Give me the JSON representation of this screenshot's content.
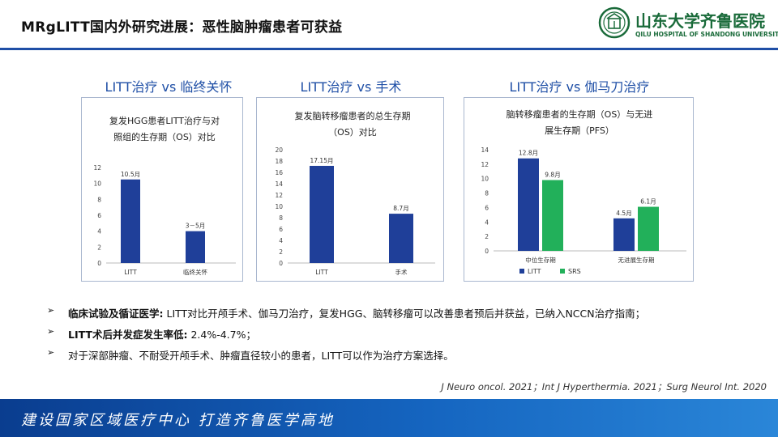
{
  "header": {
    "title": "MRgLITT国内外研究进展：恶性脑肿瘤患者可获益",
    "logo_text": "山东大学齐鲁医院",
    "logo_sub": "QILU HOSPITAL OF SHANDONG UNIVERSITY"
  },
  "columns": [
    {
      "heading": "LITT治疗 vs 临终关怀",
      "chart_title_line1": "复发HGG患者LITT治疗与对",
      "chart_title_line2": "照组的生存期（OS）对比"
    },
    {
      "heading": "LITT治疗 vs 手术",
      "chart_title_line1": "复发脑转移瘤患者的总生存期",
      "chart_title_line2": "（OS）对比"
    },
    {
      "heading": "LITT治疗 vs 伽马刀治疗",
      "chart_title_line1": "脑转移瘤患者的生存期（OS）与无进",
      "chart_title_line2": "展生存期（PFS）"
    }
  ],
  "chart_data": [
    {
      "type": "bar",
      "categories": [
        "LITT",
        "临终关怀"
      ],
      "values": [
        10.5,
        4
      ],
      "data_labels": [
        "10.5月",
        "3－5月"
      ],
      "ylim": [
        0,
        12
      ],
      "yticks": [
        0,
        2,
        4,
        6,
        8,
        10,
        12
      ],
      "color": "#1f3f99"
    },
    {
      "type": "bar",
      "categories": [
        "LITT",
        "手术"
      ],
      "values": [
        17.15,
        8.7
      ],
      "data_labels": [
        "17.15月",
        "8.7月"
      ],
      "ylim": [
        0,
        20
      ],
      "yticks": [
        0,
        2,
        4,
        6,
        8,
        10,
        12,
        14,
        16,
        18,
        20
      ],
      "color": "#1f3f99"
    },
    {
      "type": "bar",
      "categories": [
        "中位生存期",
        "无进展生存期"
      ],
      "series": [
        {
          "name": "LITT",
          "values": [
            12.8,
            4.5
          ],
          "data_labels": [
            "12.8月",
            "4.5月"
          ],
          "color": "#1f3f99"
        },
        {
          "name": "SRS",
          "values": [
            9.8,
            6.1
          ],
          "data_labels": [
            "9.8月",
            "6.1月"
          ],
          "color": "#22b05a"
        }
      ],
      "ylim": [
        0,
        14
      ],
      "yticks": [
        0,
        2,
        4,
        6,
        8,
        10,
        12,
        14
      ],
      "legend": "bottom-left"
    }
  ],
  "bullets": [
    {
      "arrow": "➢",
      "bold": "临床试验及循证医学:",
      "text": " LITT对比开颅手术、伽马刀治疗，复发HGG、脑转移瘤可以改善患者预后并获益，已纳入NCCN治疗指南；"
    },
    {
      "arrow": "➢",
      "bold": "LITT术后并发症发生率低:",
      "text": " 2.4%-4.7%；"
    },
    {
      "arrow": "➢",
      "bold": "",
      "text": "对于深部肿瘤、不耐受开颅手术、肿瘤直径较小的患者，LITT可以作为治疗方案选择。"
    }
  ],
  "references": "J Neuro oncol. 2021；Int J Hyperthermia. 2021；Surg Neurol Int. 2020",
  "footer": {
    "slogan": "建设国家区域医疗中心  打造齐鲁医学高地"
  }
}
